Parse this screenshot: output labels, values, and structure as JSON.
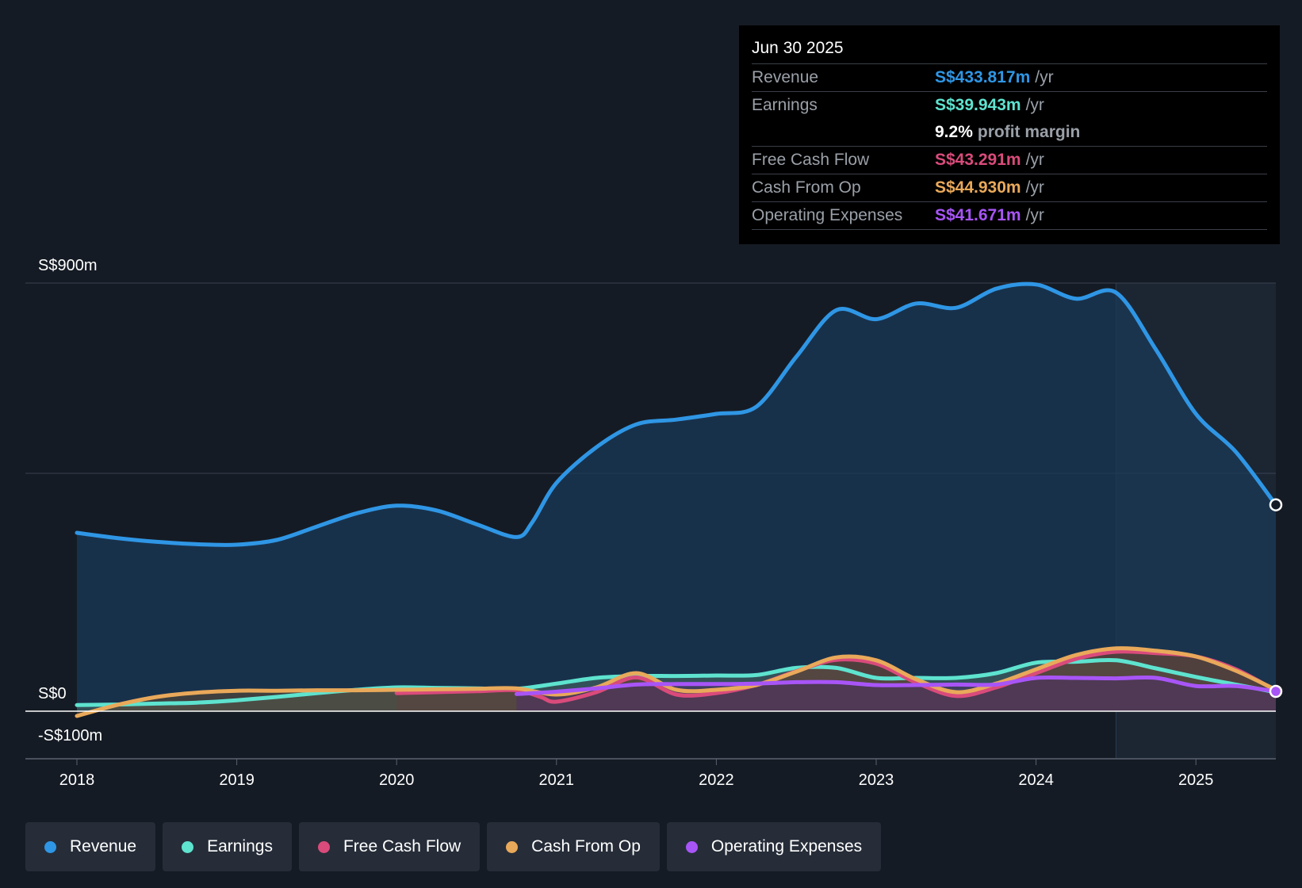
{
  "chart_data": {
    "type": "area",
    "y_axis": {
      "labels": [
        "S$900m",
        "S$0",
        "-S$100m"
      ],
      "ylim": [
        -100,
        900
      ],
      "gridlines": [
        900,
        500,
        0,
        -100
      ]
    },
    "x_axis": {
      "ticks": [
        "2018",
        "2019",
        "2020",
        "2021",
        "2022",
        "2023",
        "2024",
        "2025"
      ],
      "xlim": [
        2018.0,
        2025.5
      ]
    },
    "highlight_from": 2024.5,
    "series": [
      {
        "name": "Revenue",
        "color": "#2f96e5",
        "fill": "#1a3a58",
        "points": [
          [
            2018.0,
            375
          ],
          [
            2018.25,
            364
          ],
          [
            2018.5,
            356
          ],
          [
            2018.75,
            351
          ],
          [
            2019.0,
            350
          ],
          [
            2019.25,
            360
          ],
          [
            2019.5,
            388
          ],
          [
            2019.75,
            416
          ],
          [
            2020.0,
            432
          ],
          [
            2020.25,
            422
          ],
          [
            2020.5,
            393
          ],
          [
            2020.75,
            366
          ],
          [
            2020.85,
            398
          ],
          [
            2021.0,
            480
          ],
          [
            2021.25,
            555
          ],
          [
            2021.5,
            603
          ],
          [
            2021.75,
            613
          ],
          [
            2022.0,
            625
          ],
          [
            2022.25,
            640
          ],
          [
            2022.5,
            745
          ],
          [
            2022.75,
            843
          ],
          [
            2023.0,
            824
          ],
          [
            2023.25,
            857
          ],
          [
            2023.5,
            848
          ],
          [
            2023.75,
            888
          ],
          [
            2024.0,
            897
          ],
          [
            2024.25,
            867
          ],
          [
            2024.5,
            880
          ],
          [
            2024.75,
            760
          ],
          [
            2025.0,
            625
          ],
          [
            2025.25,
            545
          ],
          [
            2025.5,
            433.817
          ]
        ]
      },
      {
        "name": "Earnings",
        "color": "#5ee3cf",
        "fill": "#4a6b66",
        "points": [
          [
            2018.0,
            13
          ],
          [
            2018.25,
            14
          ],
          [
            2018.5,
            16
          ],
          [
            2018.75,
            18
          ],
          [
            2019.0,
            23
          ],
          [
            2019.25,
            30
          ],
          [
            2019.5,
            38
          ],
          [
            2019.75,
            45
          ],
          [
            2020.0,
            50
          ],
          [
            2020.25,
            49
          ],
          [
            2020.5,
            48
          ],
          [
            2020.75,
            47
          ],
          [
            2021.0,
            58
          ],
          [
            2021.25,
            70
          ],
          [
            2021.5,
            74
          ],
          [
            2021.75,
            74
          ],
          [
            2022.0,
            75
          ],
          [
            2022.25,
            76
          ],
          [
            2022.5,
            91
          ],
          [
            2022.75,
            91
          ],
          [
            2023.0,
            70
          ],
          [
            2023.25,
            70
          ],
          [
            2023.5,
            70
          ],
          [
            2023.75,
            80
          ],
          [
            2024.0,
            102
          ],
          [
            2024.25,
            104
          ],
          [
            2024.5,
            107
          ],
          [
            2024.75,
            90
          ],
          [
            2025.0,
            72
          ],
          [
            2025.25,
            56
          ],
          [
            2025.5,
            39.943
          ]
        ]
      },
      {
        "name": "Free Cash Flow",
        "color": "#d94b7b",
        "fill": "#5a3346",
        "points": [
          [
            2020.0,
            38
          ],
          [
            2020.25,
            40
          ],
          [
            2020.5,
            42
          ],
          [
            2020.75,
            44
          ],
          [
            2020.9,
            30
          ],
          [
            2021.0,
            20
          ],
          [
            2021.25,
            40
          ],
          [
            2021.5,
            71
          ],
          [
            2021.75,
            35
          ],
          [
            2022.0,
            38
          ],
          [
            2022.25,
            55
          ],
          [
            2022.5,
            84
          ],
          [
            2022.75,
            108
          ],
          [
            2023.0,
            100
          ],
          [
            2023.25,
            60
          ],
          [
            2023.5,
            32
          ],
          [
            2023.75,
            50
          ],
          [
            2024.0,
            80
          ],
          [
            2024.25,
            110
          ],
          [
            2024.5,
            125
          ],
          [
            2024.75,
            122
          ],
          [
            2025.0,
            115
          ],
          [
            2025.25,
            88
          ],
          [
            2025.5,
            43.291
          ]
        ]
      },
      {
        "name": "Cash From Op",
        "color": "#e9a95a",
        "fill": "#5e4a35",
        "points": [
          [
            2018.0,
            -10
          ],
          [
            2018.25,
            13
          ],
          [
            2018.5,
            30
          ],
          [
            2018.75,
            39
          ],
          [
            2019.0,
            43
          ],
          [
            2019.25,
            43
          ],
          [
            2019.5,
            44
          ],
          [
            2019.75,
            44
          ],
          [
            2020.0,
            45
          ],
          [
            2020.25,
            46
          ],
          [
            2020.5,
            47
          ],
          [
            2020.75,
            48
          ],
          [
            2021.0,
            35
          ],
          [
            2021.25,
            50
          ],
          [
            2021.5,
            80
          ],
          [
            2021.75,
            45
          ],
          [
            2022.0,
            45
          ],
          [
            2022.25,
            55
          ],
          [
            2022.5,
            83
          ],
          [
            2022.75,
            113
          ],
          [
            2023.0,
            107
          ],
          [
            2023.25,
            67
          ],
          [
            2023.5,
            40
          ],
          [
            2023.75,
            58
          ],
          [
            2024.0,
            88
          ],
          [
            2024.25,
            118
          ],
          [
            2024.5,
            132
          ],
          [
            2024.75,
            127
          ],
          [
            2025.0,
            115
          ],
          [
            2025.25,
            85
          ],
          [
            2025.5,
            44.93
          ]
        ]
      },
      {
        "name": "Operating Expenses",
        "color": "#a855f7",
        "fill": "#4a2f66",
        "points": [
          [
            2020.75,
            36
          ],
          [
            2021.0,
            41
          ],
          [
            2021.25,
            48
          ],
          [
            2021.5,
            56
          ],
          [
            2021.75,
            57
          ],
          [
            2022.0,
            57
          ],
          [
            2022.25,
            58
          ],
          [
            2022.5,
            61
          ],
          [
            2022.75,
            61
          ],
          [
            2023.0,
            55
          ],
          [
            2023.25,
            55
          ],
          [
            2023.5,
            56
          ],
          [
            2023.75,
            56
          ],
          [
            2024.0,
            70
          ],
          [
            2024.25,
            70
          ],
          [
            2024.5,
            69
          ],
          [
            2024.75,
            70
          ],
          [
            2025.0,
            53
          ],
          [
            2025.25,
            53
          ],
          [
            2025.5,
            41.671
          ]
        ]
      }
    ]
  },
  "tooltip": {
    "date": "Jun 30 2025",
    "rows": [
      {
        "label": "Revenue",
        "value": "S$433.817m",
        "unit": "/yr",
        "color": "#2f96e5"
      },
      {
        "label": "Earnings",
        "value": "S$39.943m",
        "unit": "/yr",
        "color": "#5ee3cf"
      },
      {
        "label": "Free Cash Flow",
        "value": "S$43.291m",
        "unit": "/yr",
        "color": "#d94b7b"
      },
      {
        "label": "Cash From Op",
        "value": "S$44.930m",
        "unit": "/yr",
        "color": "#e9a95a"
      },
      {
        "label": "Operating Expenses",
        "value": "S$41.671m",
        "unit": "/yr",
        "color": "#a855f7"
      }
    ],
    "margin_pct": "9.2%",
    "margin_text": "profit margin"
  },
  "legend": [
    {
      "label": "Revenue",
      "color": "#2f96e5"
    },
    {
      "label": "Earnings",
      "color": "#5ee3cf"
    },
    {
      "label": "Free Cash Flow",
      "color": "#d94b7b"
    },
    {
      "label": "Cash From Op",
      "color": "#e9a95a"
    },
    {
      "label": "Operating Expenses",
      "color": "#a855f7"
    }
  ]
}
